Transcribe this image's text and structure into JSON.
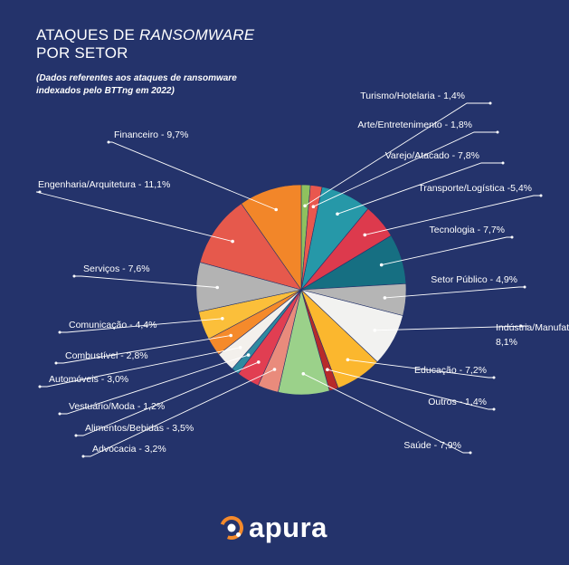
{
  "header": {
    "title_line1_prefix": "ATAQUES DE ",
    "title_line1_italic": "RANSOMWARE",
    "title_line2": "POR SETOR",
    "subtitle_line1": "(Dados referentes aos ataques de ransomware",
    "subtitle_line2": "indexados pelo BTTng em 2022)"
  },
  "brand": {
    "name": "apura",
    "icon": "apura-logo-icon",
    "accent": "#f58a2b"
  },
  "chart_data": {
    "type": "pie",
    "start_angle_deg": 0,
    "direction": "clockwise",
    "slices": [
      {
        "name": "Turismo/Hotelaria",
        "value": 1.4,
        "label": "Turismo/Hotelaria - 1,4%",
        "color": "#8fc15e"
      },
      {
        "name": "Arte/Entretenimento",
        "value": 1.8,
        "label": "Arte/Entretenimento - 1,8%",
        "color": "#e9574e"
      },
      {
        "name": "Varejo/Atacado",
        "value": 7.8,
        "label": "Varejo/Atacado - 7,8%",
        "color": "#2698a8"
      },
      {
        "name": "Transporte/Logística",
        "value": 5.4,
        "label": "Transporte/Logística -5,4%",
        "color": "#dd3a4d"
      },
      {
        "name": "Tecnologia",
        "value": 7.7,
        "label": "Tecnologia - 7,7%",
        "color": "#166f82"
      },
      {
        "name": "Setor Público",
        "value": 4.9,
        "label": "Setor Público - 4,9%",
        "color": "#b5b5b5"
      },
      {
        "name": "Indústria/Manufatura",
        "value": 8.1,
        "label_line1": "Indústria/Manufatura",
        "label_line2": "8,1%",
        "color": "#f2f2f0"
      },
      {
        "name": "Educação",
        "value": 7.2,
        "label": "Educação - 7,2%",
        "color": "#fbb72e"
      },
      {
        "name": "Outros",
        "value": 1.4,
        "label": "Outros - 1,4%",
        "color": "#b72a2a"
      },
      {
        "name": "Saúde",
        "value": 7.9,
        "label": "Saúde - 7,9%",
        "color": "#9bd18a"
      },
      {
        "name": "Advocacia",
        "value": 3.2,
        "label": "Advocacia - 3,2%",
        "color": "#e98b7c"
      },
      {
        "name": "Alimentos/Bebidas",
        "value": 3.5,
        "label": "Alimentos/Bebidas - 3,5%",
        "color": "#e13e52"
      },
      {
        "name": "Vestuário/Moda",
        "value": 1.2,
        "label": "Vestuário/Moda - 1,2%",
        "color": "#2f8aa0"
      },
      {
        "name": "Automóveis",
        "value": 3.0,
        "label": "Automóveis - 3,0%",
        "color": "#f3f0ec"
      },
      {
        "name": "Combustível",
        "value": 2.8,
        "label": "Combustível - 2,8%",
        "color": "#f58a2b"
      },
      {
        "name": "Comunicação",
        "value": 4.4,
        "label": "Comunicação - 4,4%",
        "color": "#fbbf3a"
      },
      {
        "name": "Serviços",
        "value": 7.6,
        "label": "Serviços - 7,6%",
        "color": "#b3b3b3"
      },
      {
        "name": "Engenharia/Arquitetura",
        "value": 11.1,
        "label": "Engenharia/Arquitetura - 11,1%",
        "color": "#e6594c"
      },
      {
        "name": "Financeiro",
        "value": 9.7,
        "label": "Financeiro - 9,7%",
        "color": "#f28629"
      }
    ],
    "legend": "none",
    "leader_lines": true,
    "background_color": "#24336b",
    "label_color": "#ffffff"
  }
}
